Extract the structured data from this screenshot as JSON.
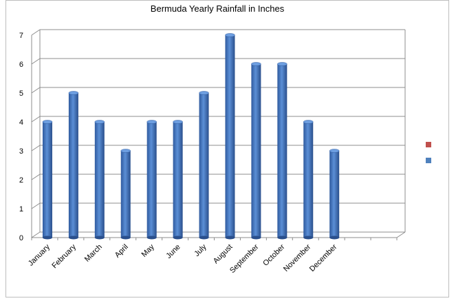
{
  "chart_data": {
    "type": "bar",
    "title": "Bermuda Yearly Rainfall in Inches",
    "xlabel": "",
    "ylabel": "",
    "categories": [
      "January",
      "February",
      "March",
      "April",
      "May",
      "June",
      "July",
      "August",
      "September",
      "October",
      "November",
      "December"
    ],
    "series": [
      {
        "values": [
          4,
          5,
          4,
          3,
          4,
          4,
          5,
          7,
          6,
          6,
          4,
          3
        ],
        "color": "#4472c4"
      }
    ],
    "ylim": [
      0,
      7
    ],
    "yticks": [
      "0",
      "1",
      "2",
      "3",
      "4",
      "5",
      "6",
      "7"
    ],
    "grid": true,
    "legend": {
      "position": "right",
      "entries": [
        {
          "color": "#c0504d"
        },
        {
          "color": "#4f81bd"
        }
      ]
    }
  }
}
